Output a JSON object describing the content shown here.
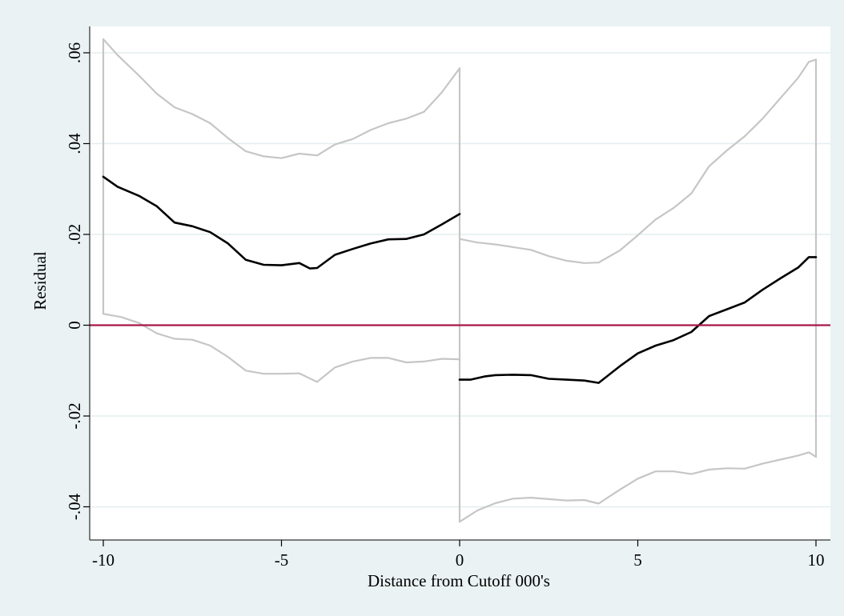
{
  "chart_data": {
    "type": "line",
    "title": "",
    "xlabel": "Distance from Cutoff 000's",
    "ylabel": "Residual",
    "xlim": [
      -10,
      10
    ],
    "ylim": [
      -0.046,
      0.065
    ],
    "x_ticks": [
      -10,
      -5,
      0,
      5,
      10
    ],
    "x_tick_labels": [
      "-10",
      "-5",
      "0",
      "5",
      "10"
    ],
    "y_ticks": [
      -0.04,
      -0.02,
      0,
      0.02,
      0.04,
      0.06
    ],
    "y_tick_labels": [
      "-.04",
      "-.02",
      "0",
      ".02",
      ".04",
      ".06"
    ],
    "grid": true,
    "legend": "none",
    "reference_line": {
      "y": 0,
      "color": "#a8184a"
    },
    "colors": {
      "fit": "#000000",
      "ci": "#c6c6c6",
      "plot_bg": "#ffffff",
      "outer_bg": "#eaf2f3",
      "grid": "#e4eeef"
    },
    "series": [
      {
        "role": "left-fit",
        "color": "#000000",
        "points": [
          [
            -10,
            0.0327
          ],
          [
            -9.6,
            0.0305
          ],
          [
            -9,
            0.0285
          ],
          [
            -8.5,
            0.0262
          ],
          [
            -8,
            0.0226
          ],
          [
            -7.5,
            0.0218
          ],
          [
            -7,
            0.0205
          ],
          [
            -6.5,
            0.018
          ],
          [
            -6,
            0.0144
          ],
          [
            -5.5,
            0.0133
          ],
          [
            -5,
            0.0132
          ],
          [
            -4.5,
            0.0137
          ],
          [
            -4.2,
            0.0125
          ],
          [
            -4,
            0.0126
          ],
          [
            -3.5,
            0.0155
          ],
          [
            -3,
            0.0168
          ],
          [
            -2.5,
            0.018
          ],
          [
            -2,
            0.0189
          ],
          [
            -1.5,
            0.019
          ],
          [
            -1,
            0.02
          ],
          [
            -0.5,
            0.0222
          ],
          [
            0,
            0.0245
          ]
        ]
      },
      {
        "role": "left-upper-ci",
        "color": "#c6c6c6",
        "points": [
          [
            -10,
            0.063
          ],
          [
            -9.6,
            0.0595
          ],
          [
            -9,
            0.055
          ],
          [
            -8.5,
            0.051
          ],
          [
            -8,
            0.048
          ],
          [
            -7.5,
            0.0465
          ],
          [
            -7,
            0.0445
          ],
          [
            -6.5,
            0.0412
          ],
          [
            -6,
            0.0383
          ],
          [
            -5.5,
            0.0372
          ],
          [
            -5,
            0.0368
          ],
          [
            -4.5,
            0.0378
          ],
          [
            -4,
            0.0374
          ],
          [
            -3.5,
            0.0398
          ],
          [
            -3,
            0.041
          ],
          [
            -2.5,
            0.043
          ],
          [
            -2,
            0.0445
          ],
          [
            -1.5,
            0.0455
          ],
          [
            -1,
            0.047
          ],
          [
            -0.5,
            0.0513
          ],
          [
            0,
            0.0566
          ]
        ]
      },
      {
        "role": "left-lower-ci",
        "color": "#c6c6c6",
        "points": [
          [
            -10,
            0.0025
          ],
          [
            -9.5,
            0.0018
          ],
          [
            -9,
            0.0005
          ],
          [
            -8.5,
            -0.0018
          ],
          [
            -8,
            -0.003
          ],
          [
            -7.5,
            -0.0032
          ],
          [
            -7,
            -0.0045
          ],
          [
            -6.5,
            -0.007
          ],
          [
            -6,
            -0.01
          ],
          [
            -5.5,
            -0.0107
          ],
          [
            -5,
            -0.0107
          ],
          [
            -4.5,
            -0.0106
          ],
          [
            -4,
            -0.0125
          ],
          [
            -3.5,
            -0.0093
          ],
          [
            -3,
            -0.008
          ],
          [
            -2.5,
            -0.0072
          ],
          [
            -2,
            -0.0072
          ],
          [
            -1.5,
            -0.0082
          ],
          [
            -1,
            -0.008
          ],
          [
            -0.5,
            -0.0074
          ],
          [
            0,
            -0.0075
          ]
        ]
      },
      {
        "role": "right-fit",
        "color": "#000000",
        "points": [
          [
            0,
            -0.012
          ],
          [
            0.3,
            -0.012
          ],
          [
            0.7,
            -0.0113
          ],
          [
            1,
            -0.011
          ],
          [
            1.5,
            -0.0109
          ],
          [
            2,
            -0.011
          ],
          [
            2.5,
            -0.0118
          ],
          [
            3,
            -0.012
          ],
          [
            3.5,
            -0.0122
          ],
          [
            3.9,
            -0.0127
          ],
          [
            4.5,
            -0.009
          ],
          [
            5,
            -0.0062
          ],
          [
            5.5,
            -0.0045
          ],
          [
            6,
            -0.0033
          ],
          [
            6.5,
            -0.0015
          ],
          [
            7,
            0.002
          ],
          [
            7.5,
            0.0035
          ],
          [
            8,
            0.005
          ],
          [
            8.5,
            0.0078
          ],
          [
            9,
            0.0103
          ],
          [
            9.5,
            0.0127
          ],
          [
            9.8,
            0.015
          ],
          [
            10,
            0.015
          ]
        ]
      },
      {
        "role": "right-upper-ci",
        "color": "#c6c6c6",
        "points": [
          [
            0,
            0.019
          ],
          [
            0.5,
            0.0182
          ],
          [
            1,
            0.0178
          ],
          [
            1.5,
            0.0172
          ],
          [
            2,
            0.0166
          ],
          [
            2.5,
            0.0152
          ],
          [
            3,
            0.0142
          ],
          [
            3.5,
            0.0137
          ],
          [
            3.9,
            0.0138
          ],
          [
            4.5,
            0.0165
          ],
          [
            5,
            0.0198
          ],
          [
            5.5,
            0.0233
          ],
          [
            6,
            0.0258
          ],
          [
            6.5,
            0.029
          ],
          [
            7,
            0.035
          ],
          [
            7.5,
            0.0385
          ],
          [
            8,
            0.0416
          ],
          [
            8.5,
            0.0455
          ],
          [
            9,
            0.05
          ],
          [
            9.5,
            0.0545
          ],
          [
            9.8,
            0.058
          ],
          [
            10,
            0.0585
          ]
        ]
      },
      {
        "role": "right-lower-ci",
        "color": "#c6c6c6",
        "points": [
          [
            0,
            -0.0433
          ],
          [
            0.5,
            -0.0408
          ],
          [
            1,
            -0.0392
          ],
          [
            1.5,
            -0.0382
          ],
          [
            2,
            -0.038
          ],
          [
            2.5,
            -0.0383
          ],
          [
            3,
            -0.0386
          ],
          [
            3.5,
            -0.0385
          ],
          [
            3.9,
            -0.0393
          ],
          [
            4.5,
            -0.0362
          ],
          [
            5,
            -0.0338
          ],
          [
            5.5,
            -0.0322
          ],
          [
            6,
            -0.0322
          ],
          [
            6.5,
            -0.0328
          ],
          [
            7,
            -0.0318
          ],
          [
            7.5,
            -0.0315
          ],
          [
            8,
            -0.0316
          ],
          [
            8.5,
            -0.0305
          ],
          [
            9,
            -0.0296
          ],
          [
            9.5,
            -0.0287
          ],
          [
            9.8,
            -0.028
          ],
          [
            10,
            -0.029
          ]
        ]
      }
    ],
    "connectors": [
      {
        "role": "left-ci-closing-edge",
        "color": "#c6c6c6",
        "points": [
          [
            -10,
            0.063
          ],
          [
            -10,
            0.0025
          ]
        ]
      },
      {
        "role": "cutoff-ci-edge",
        "color": "#c6c6c6",
        "points": [
          [
            0,
            0.0566
          ],
          [
            0,
            -0.0433
          ]
        ]
      },
      {
        "role": "right-ci-closing-edge",
        "color": "#c6c6c6",
        "points": [
          [
            10,
            0.0585
          ],
          [
            10,
            -0.029
          ]
        ]
      }
    ]
  }
}
